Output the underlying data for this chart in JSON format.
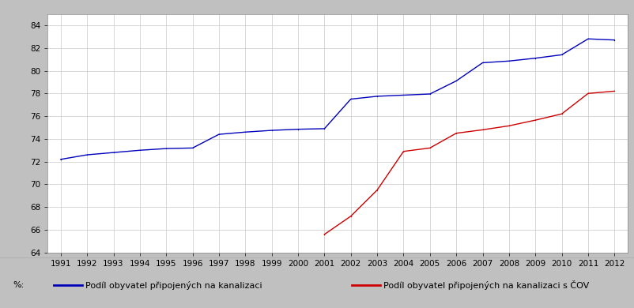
{
  "blue_line": {
    "years": [
      1991,
      1992,
      1993,
      1994,
      1995,
      1996,
      1997,
      1998,
      1999,
      2000,
      2001,
      2002,
      2003,
      2004,
      2005,
      2006,
      2007,
      2008,
      2009,
      2010,
      2011,
      2012
    ],
    "values": [
      72.2,
      72.6,
      72.8,
      73.0,
      73.15,
      73.2,
      74.4,
      74.6,
      74.75,
      74.85,
      74.9,
      77.5,
      77.75,
      77.85,
      77.95,
      79.1,
      80.7,
      80.85,
      81.1,
      81.4,
      82.8,
      82.7
    ]
  },
  "red_line": {
    "years": [
      2001,
      2002,
      2003,
      2004,
      2005,
      2006,
      2007,
      2008,
      2009,
      2010,
      2011,
      2012
    ],
    "values": [
      65.6,
      67.2,
      69.5,
      72.9,
      73.2,
      74.5,
      74.8,
      75.15,
      75.65,
      76.2,
      78.0,
      78.2
    ]
  },
  "xlim_min": 1991,
  "xlim_max": 2012,
  "ylim_min": 64,
  "ylim_max": 85,
  "yticks": [
    64,
    66,
    68,
    70,
    72,
    74,
    76,
    78,
    80,
    82,
    84
  ],
  "xticks": [
    1991,
    1992,
    1993,
    1994,
    1995,
    1996,
    1997,
    1998,
    1999,
    2000,
    2001,
    2002,
    2003,
    2004,
    2005,
    2006,
    2007,
    2008,
    2009,
    2010,
    2011,
    2012
  ],
  "blue_color": "#0000bb",
  "red_color": "#cc0000",
  "background_plot": "#ffffff",
  "background_fig": "#c0c0c0",
  "background_legend": "#eeffee",
  "grid_color": "#c8c8c8",
  "legend_blue": "Podíl obyvatel připojených na kanalizaci",
  "legend_red": "Podíl obyvatel připojených na kanalizaci s ČOV",
  "tick_fontsize": 7.5,
  "legend_fontsize": 8,
  "linewidth": 1.0,
  "marker_size": 2.0
}
